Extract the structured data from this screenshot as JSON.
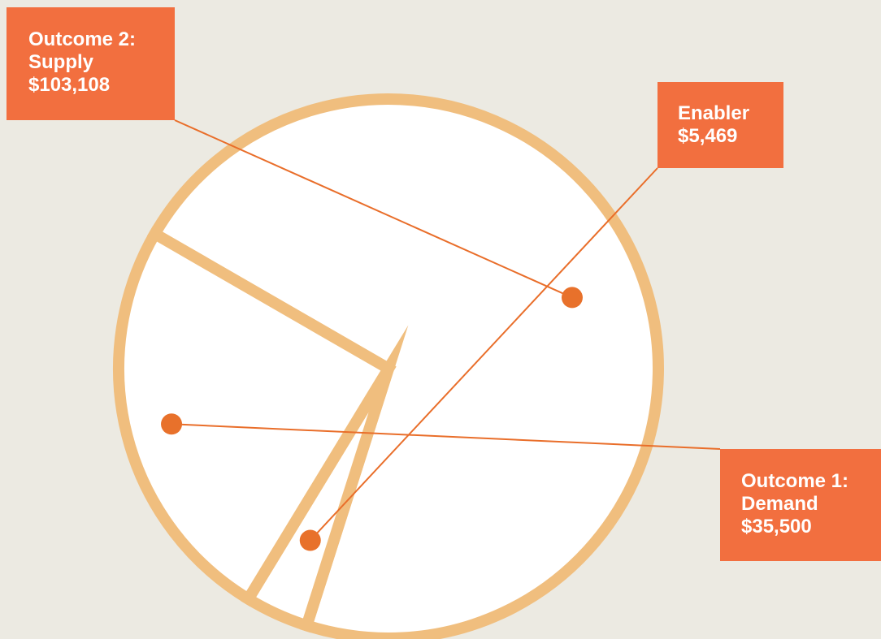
{
  "chart_data": {
    "type": "pie",
    "slices": [
      {
        "name": "Outcome 2: Supply",
        "label_lines": [
          "Outcome 2:",
          "Supply",
          "$103,108"
        ],
        "value": 103108,
        "display_value": "$103,108"
      },
      {
        "name": "Enabler",
        "label_lines": [
          "Enabler",
          "$5,469"
        ],
        "value": 5469,
        "display_value": "$5,469"
      },
      {
        "name": "Outcome 1: Demand",
        "label_lines": [
          "Outcome 1:",
          "Demand",
          "$35,500"
        ],
        "value": 35500,
        "display_value": "$35,500"
      }
    ],
    "colors": {
      "background": "#ECEAE2",
      "slice_fill": "#FFFFFF",
      "slice_stroke": "#F0BE7E",
      "label_box": "#F26F3F",
      "leader_line": "#E96E2A",
      "marker": "#E8712B",
      "label_text": "#FFFFFF"
    }
  }
}
